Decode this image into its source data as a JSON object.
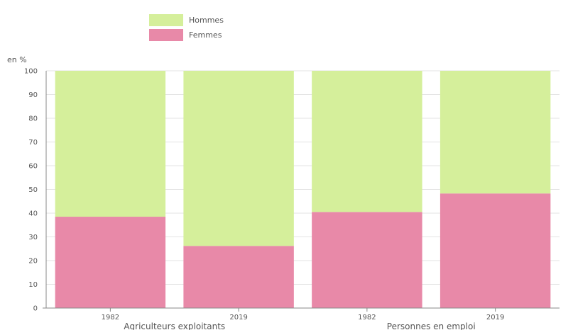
{
  "chart_data": {
    "type": "bar",
    "stacked": true,
    "ylabel": "en %",
    "ylim": [
      0,
      100
    ],
    "y_ticks": [
      0,
      10,
      20,
      30,
      40,
      50,
      60,
      70,
      80,
      90,
      100
    ],
    "categories": [
      "1982",
      "2019",
      "1982",
      "2019"
    ],
    "groups": [
      {
        "label": "Agriculteurs exploitants",
        "categories": [
          0,
          1
        ]
      },
      {
        "label": "Personnes en emploi",
        "categories": [
          2,
          3
        ]
      }
    ],
    "series": [
      {
        "name": "Femmes",
        "color": "#e889a8",
        "values": [
          38.5,
          26.2,
          40.5,
          48.3
        ]
      },
      {
        "name": "Hommes",
        "color": "#d5ef9b",
        "values": [
          61.5,
          73.8,
          59.5,
          51.7
        ]
      }
    ],
    "legend": {
      "position": "top-left",
      "order": [
        "Hommes",
        "Femmes"
      ]
    },
    "grid": true,
    "colors": {
      "grid": "#e3e3e3",
      "axis": "#888888",
      "text": "#555555"
    }
  }
}
